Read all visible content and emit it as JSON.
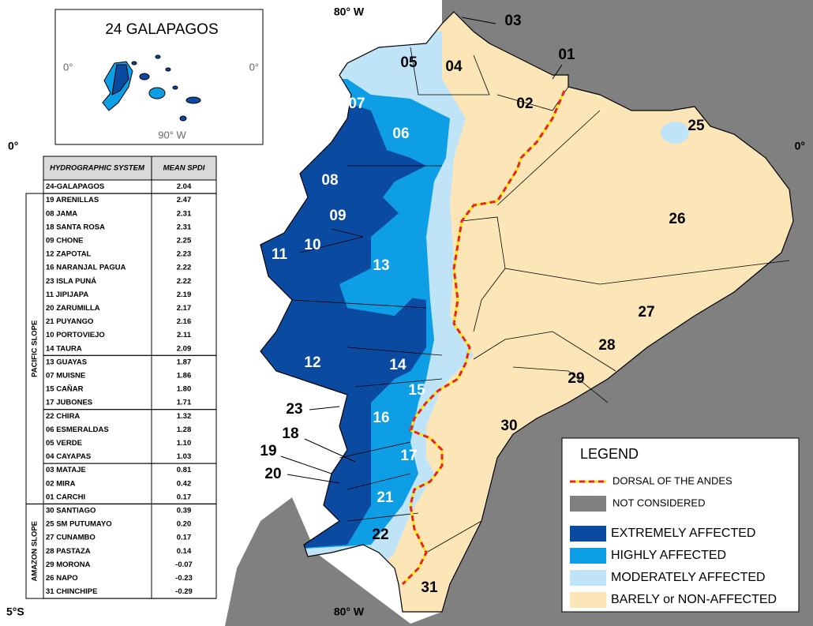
{
  "inset": {
    "title": "24 GALAPAGOS",
    "lat_left": "0°",
    "lat_right": "0°",
    "lon": "90° W"
  },
  "coordinates": {
    "lon_top": "80° W",
    "lon_bottom": "80° W",
    "lat_left": "0°",
    "lat_right": "0°",
    "lat_south": "5°S"
  },
  "table": {
    "header": [
      "HYDROGRAPHIC SYSTEM",
      "MEAN SPDI"
    ],
    "top_row": [
      "24-GALAPAGOS",
      "2.04"
    ],
    "groups": [
      {
        "label": "PACIFIC SLOPE",
        "blocks": [
          [
            [
              "19 ARENILLAS",
              "2.47"
            ],
            [
              "08 JAMA",
              "2.31"
            ],
            [
              "18 SANTA ROSA",
              "2.31"
            ],
            [
              "09 CHONE",
              "2.25"
            ],
            [
              "12 ZAPOTAL",
              "2.23"
            ],
            [
              "16 NARANJAL PAGUA",
              "2.22"
            ],
            [
              "23 ISLA PUNÁ",
              "2.22"
            ],
            [
              "11 JIPIJAPA",
              "2.19"
            ],
            [
              "20 ZARUMILLA",
              "2.17"
            ],
            [
              "21 PUYANGO",
              "2.16"
            ],
            [
              "10 PORTOVIEJO",
              "2.11"
            ],
            [
              "14 TAURA",
              "2.09"
            ]
          ],
          [
            [
              "13 GUAYAS",
              "1.87"
            ],
            [
              "07 MUISNE",
              "1.86"
            ],
            [
              "15 CAÑAR",
              "1.80"
            ],
            [
              "17 JUBONES",
              "1.71"
            ]
          ],
          [
            [
              "22 CHIRA",
              "1.32"
            ],
            [
              "06 ESMERALDAS",
              "1.28"
            ],
            [
              "05 VERDE",
              "1.10"
            ],
            [
              "04 CAYAPAS",
              "1.03"
            ]
          ],
          [
            [
              "03 MATAJE",
              "0.81"
            ],
            [
              "02 MIRA",
              "0.42"
            ],
            [
              "01 CARCHI",
              "0.17"
            ]
          ]
        ]
      },
      {
        "label": "AMAZON SLOPE",
        "blocks": [
          [
            [
              "30 SANTIAGO",
              "0.39"
            ],
            [
              "25 SM PUTUMAYO",
              "0.20"
            ],
            [
              "27 CUNAMBO",
              "0.17"
            ],
            [
              "28 PASTAZA",
              "0.14"
            ],
            [
              "29 MORONA",
              "-0.07"
            ],
            [
              "26 NAPO",
              "-0.23"
            ],
            [
              "31 CHINCHIPE",
              "-0.29"
            ]
          ]
        ]
      }
    ]
  },
  "regions": [
    "01",
    "02",
    "03",
    "04",
    "05",
    "06",
    "07",
    "08",
    "09",
    "10",
    "11",
    "12",
    "13",
    "14",
    "15",
    "16",
    "17",
    "18",
    "19",
    "20",
    "21",
    "22",
    "23",
    "25",
    "26",
    "27",
    "28",
    "29",
    "30",
    "31"
  ],
  "legend": {
    "title": "LEGEND",
    "items": [
      {
        "label": "DORSAL OF THE ANDES",
        "color": "#e8241c"
      },
      {
        "label": "NOT CONSIDERED",
        "color": "#808080"
      },
      {
        "label": "EXTREMELY AFFECTED",
        "color": "#0b4aa1"
      },
      {
        "label": "HIGHLY AFFECTED",
        "color": "#0e9ee6"
      },
      {
        "label": "MODERATELY AFFECTED",
        "color": "#bfe4f8"
      },
      {
        "label": "BARELY or NON-AFFECTED",
        "color": "#fce6b8"
      }
    ]
  }
}
